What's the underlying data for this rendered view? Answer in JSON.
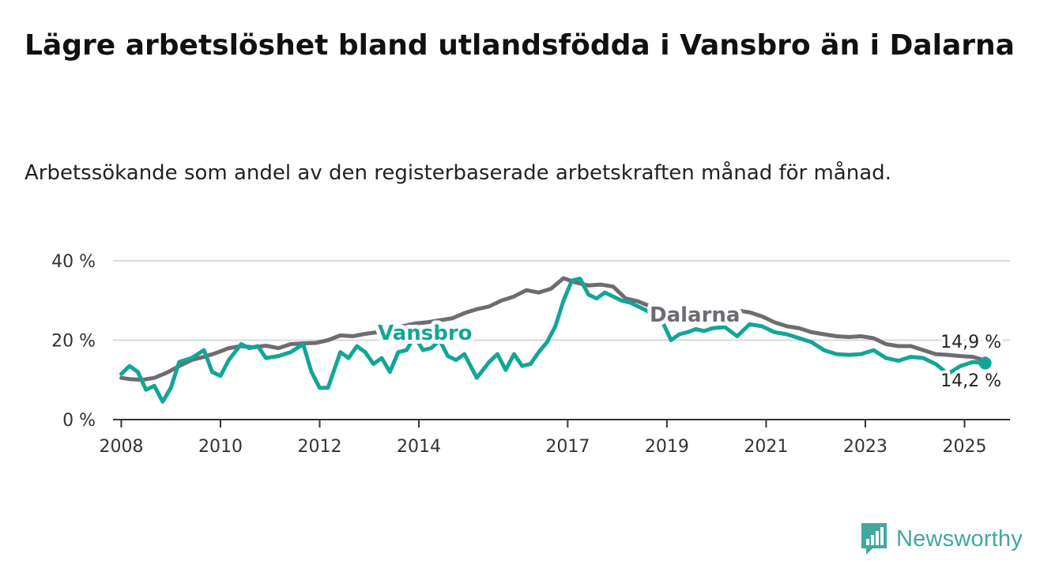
{
  "title": "Lägre arbetslöshet bland utlandsfödda i Vansbro än i Dalarna",
  "subtitle": "Arbetssökande som andel av den registerbaserade arbetskraften månad för månad.",
  "brand": {
    "name": "Newsworthy",
    "icon": "newsworthy-chart-icon"
  },
  "colors": {
    "vansbro": "#13a596",
    "dalarna": "#6f6b72",
    "grid": "#d8d8d8",
    "axis": "#333333"
  },
  "chart_data": {
    "type": "line",
    "x_ticks": [
      "2008",
      "2010",
      "2012",
      "2014",
      "2017",
      "2019",
      "2021",
      "2023",
      "2025"
    ],
    "y_ticks": [
      "0 %",
      "20 %",
      "40 %"
    ],
    "ylim": [
      0,
      40
    ],
    "xlim": [
      "2007-11",
      "2025-12"
    ],
    "grid": true,
    "series": [
      {
        "name": "Dalarna",
        "end_label": "14,9 %",
        "points": [
          [
            "2008-01",
            10.5
          ],
          [
            "2008-03",
            10.2
          ],
          [
            "2008-06",
            10.0
          ],
          [
            "2008-09",
            10.5
          ],
          [
            "2008-12",
            11.8
          ],
          [
            "2009-03",
            13.5
          ],
          [
            "2009-06",
            15.0
          ],
          [
            "2009-09",
            15.8
          ],
          [
            "2009-12",
            16.8
          ],
          [
            "2010-03",
            18.0
          ],
          [
            "2010-06",
            18.5
          ],
          [
            "2010-09",
            18.2
          ],
          [
            "2010-12",
            18.6
          ],
          [
            "2011-03",
            18.0
          ],
          [
            "2011-06",
            19.0
          ],
          [
            "2011-09",
            19.2
          ],
          [
            "2011-12",
            19.3
          ],
          [
            "2012-03",
            20.0
          ],
          [
            "2012-06",
            21.2
          ],
          [
            "2012-09",
            21.0
          ],
          [
            "2012-12",
            21.6
          ],
          [
            "2013-03",
            22.0
          ],
          [
            "2013-06",
            22.3
          ],
          [
            "2013-09",
            23.5
          ],
          [
            "2013-12",
            24.2
          ],
          [
            "2014-03",
            24.5
          ],
          [
            "2014-06",
            25.0
          ],
          [
            "2014-09",
            25.5
          ],
          [
            "2014-12",
            26.8
          ],
          [
            "2015-03",
            27.8
          ],
          [
            "2015-06",
            28.5
          ],
          [
            "2015-09",
            30.0
          ],
          [
            "2015-12",
            31.0
          ],
          [
            "2016-03",
            32.6
          ],
          [
            "2016-06",
            32.0
          ],
          [
            "2016-09",
            33.0
          ],
          [
            "2016-12",
            35.6
          ],
          [
            "2017-03",
            34.5
          ],
          [
            "2017-06",
            33.8
          ],
          [
            "2017-09",
            34.0
          ],
          [
            "2017-12",
            33.5
          ],
          [
            "2018-03",
            30.5
          ],
          [
            "2018-06",
            29.8
          ],
          [
            "2018-09",
            28.5
          ],
          [
            "2018-12",
            27.8
          ],
          [
            "2019-03",
            27.0
          ],
          [
            "2019-06",
            26.5
          ],
          [
            "2019-09",
            25.5
          ],
          [
            "2019-12",
            24.8
          ],
          [
            "2020-03",
            26.2
          ],
          [
            "2020-06",
            27.5
          ],
          [
            "2020-09",
            27.0
          ],
          [
            "2020-12",
            26.0
          ],
          [
            "2021-03",
            24.5
          ],
          [
            "2021-06",
            23.5
          ],
          [
            "2021-09",
            23.0
          ],
          [
            "2021-12",
            22.0
          ],
          [
            "2022-03",
            21.5
          ],
          [
            "2022-06",
            21.0
          ],
          [
            "2022-09",
            20.8
          ],
          [
            "2022-12",
            21.0
          ],
          [
            "2023-03",
            20.5
          ],
          [
            "2023-06",
            19.0
          ],
          [
            "2023-09",
            18.5
          ],
          [
            "2023-12",
            18.5
          ],
          [
            "2024-03",
            17.5
          ],
          [
            "2024-06",
            16.5
          ],
          [
            "2024-09",
            16.3
          ],
          [
            "2024-12",
            16.0
          ],
          [
            "2025-03",
            15.8
          ],
          [
            "2025-06",
            14.9
          ]
        ]
      },
      {
        "name": "Vansbro",
        "end_label": "14,2 %",
        "points": [
          [
            "2008-01",
            11.5
          ],
          [
            "2008-03",
            13.5
          ],
          [
            "2008-05",
            12.0
          ],
          [
            "2008-07",
            7.5
          ],
          [
            "2008-09",
            8.5
          ],
          [
            "2008-11",
            4.5
          ],
          [
            "2009-01",
            8.0
          ],
          [
            "2009-03",
            14.5
          ],
          [
            "2009-06",
            15.5
          ],
          [
            "2009-09",
            17.5
          ],
          [
            "2009-11",
            12.0
          ],
          [
            "2010-01",
            11.0
          ],
          [
            "2010-03",
            15.0
          ],
          [
            "2010-06",
            19.0
          ],
          [
            "2010-08",
            18.0
          ],
          [
            "2010-10",
            18.5
          ],
          [
            "2010-12",
            15.5
          ],
          [
            "2011-03",
            16.0
          ],
          [
            "2011-06",
            17.0
          ],
          [
            "2011-09",
            19.0
          ],
          [
            "2011-11",
            12.0
          ],
          [
            "2012-01",
            8.0
          ],
          [
            "2012-03",
            8.0
          ],
          [
            "2012-06",
            17.0
          ],
          [
            "2012-08",
            15.5
          ],
          [
            "2012-10",
            18.5
          ],
          [
            "2012-12",
            17.0
          ],
          [
            "2013-02",
            14.0
          ],
          [
            "2013-04",
            15.5
          ],
          [
            "2013-06",
            12.0
          ],
          [
            "2013-08",
            17.0
          ],
          [
            "2013-10",
            17.5
          ],
          [
            "2013-12",
            21.0
          ],
          [
            "2014-02",
            17.5
          ],
          [
            "2014-04",
            18.0
          ],
          [
            "2014-06",
            20.0
          ],
          [
            "2014-08",
            16.0
          ],
          [
            "2014-10",
            15.0
          ],
          [
            "2014-12",
            16.5
          ],
          [
            "2015-03",
            10.5
          ],
          [
            "2015-06",
            14.5
          ],
          [
            "2015-08",
            16.5
          ],
          [
            "2015-10",
            12.5
          ],
          [
            "2015-12",
            16.5
          ],
          [
            "2016-02",
            13.5
          ],
          [
            "2016-04",
            14.0
          ],
          [
            "2016-06",
            17.0
          ],
          [
            "2016-08",
            19.5
          ],
          [
            "2016-10",
            23.5
          ],
          [
            "2016-12",
            30.0
          ],
          [
            "2017-02",
            35.0
          ],
          [
            "2017-04",
            35.5
          ],
          [
            "2017-06",
            31.5
          ],
          [
            "2017-08",
            30.5
          ],
          [
            "2017-10",
            32.0
          ],
          [
            "2017-12",
            31.0
          ],
          [
            "2018-02",
            30.0
          ],
          [
            "2018-04",
            29.5
          ],
          [
            "2018-06",
            28.5
          ],
          [
            "2018-08",
            27.5
          ],
          [
            "2018-10",
            26.0
          ],
          [
            "2018-12",
            24.5
          ],
          [
            "2019-02",
            20.0
          ],
          [
            "2019-04",
            21.5
          ],
          [
            "2019-06",
            22.0
          ],
          [
            "2019-08",
            22.8
          ],
          [
            "2019-10",
            22.3
          ],
          [
            "2019-12",
            23.0
          ],
          [
            "2020-03",
            23.3
          ],
          [
            "2020-06",
            21.0
          ],
          [
            "2020-09",
            24.0
          ],
          [
            "2020-12",
            23.5
          ],
          [
            "2021-03",
            22.0
          ],
          [
            "2021-06",
            21.5
          ],
          [
            "2021-09",
            20.5
          ],
          [
            "2021-12",
            19.5
          ],
          [
            "2022-03",
            17.5
          ],
          [
            "2022-06",
            16.5
          ],
          [
            "2022-09",
            16.3
          ],
          [
            "2022-12",
            16.5
          ],
          [
            "2023-03",
            17.5
          ],
          [
            "2023-06",
            15.5
          ],
          [
            "2023-09",
            14.8
          ],
          [
            "2023-12",
            15.8
          ],
          [
            "2024-03",
            15.5
          ],
          [
            "2024-06",
            14.0
          ],
          [
            "2024-09",
            11.5
          ],
          [
            "2024-12",
            13.5
          ],
          [
            "2025-03",
            14.5
          ],
          [
            "2025-06",
            14.2
          ]
        ]
      }
    ],
    "labels": {
      "vansbro": "Vansbro",
      "dalarna": "Dalarna"
    }
  }
}
